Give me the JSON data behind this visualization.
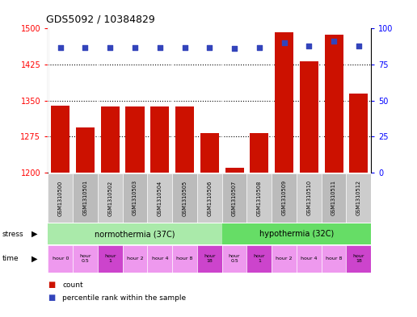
{
  "title": "GDS5092 / 10384829",
  "samples": [
    "GSM1310500",
    "GSM1310501",
    "GSM1310502",
    "GSM1310503",
    "GSM1310504",
    "GSM1310505",
    "GSM1310506",
    "GSM1310507",
    "GSM1310508",
    "GSM1310509",
    "GSM1310510",
    "GSM1310511",
    "GSM1310512"
  ],
  "counts": [
    1340,
    1295,
    1338,
    1338,
    1338,
    1338,
    1282,
    1210,
    1283,
    1492,
    1432,
    1487,
    1365
  ],
  "percentiles": [
    87,
    87,
    87,
    87,
    87,
    87,
    87,
    86,
    87,
    90,
    88,
    91,
    88
  ],
  "ylim_left": [
    1200,
    1500
  ],
  "ylim_right": [
    0,
    100
  ],
  "yticks_left": [
    1200,
    1275,
    1350,
    1425,
    1500
  ],
  "yticks_right": [
    0,
    25,
    50,
    75,
    100
  ],
  "bar_color": "#cc1100",
  "dot_color": "#3344bb",
  "norm_color": "#aaeaaa",
  "hypo_color": "#66dd66",
  "time_base_color": "#ee99ee",
  "time_highlight_color": "#cc44cc",
  "gray_even": "#cccccc",
  "gray_odd": "#bbbbbb",
  "time_labels": [
    "hour 0",
    "hour\n0.5",
    "hour\n1",
    "hour 2",
    "hour 4",
    "hour 8",
    "hour\n18",
    "hour\n0.5",
    "hour\n1",
    "hour 2",
    "hour 4",
    "hour 8",
    "hour\n18"
  ],
  "time_highlight": [
    2,
    6,
    8,
    12
  ]
}
